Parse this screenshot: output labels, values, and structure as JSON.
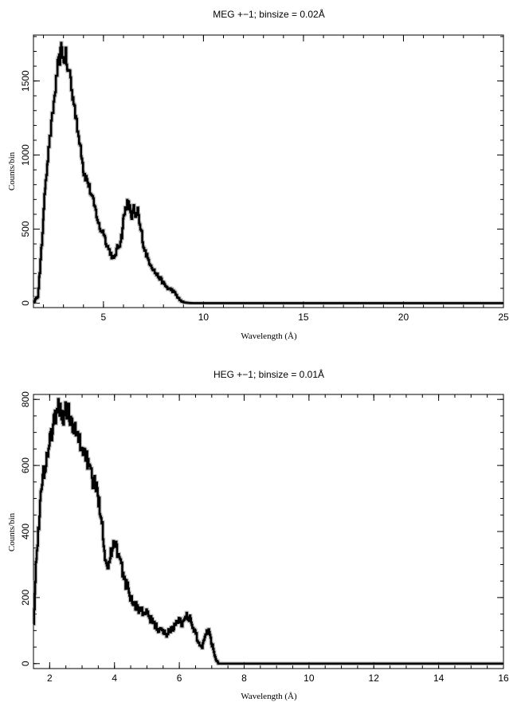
{
  "chart_data": [
    {
      "type": "line",
      "title": "MEG +−1; binsize = 0.02Å",
      "xlabel": "Wavelength (Å)",
      "ylabel": "Counts/bin",
      "xlim": [
        1.5,
        25
      ],
      "ylim": [
        -30,
        1810
      ],
      "xticks": [
        5,
        10,
        15,
        20,
        25
      ],
      "xtick_labels": [
        "5",
        "10",
        "15",
        "20",
        "25"
      ],
      "yticks": [
        0,
        500,
        1000,
        1500
      ],
      "ytick_labels": [
        "0",
        "500",
        "1000",
        "1500"
      ],
      "grid": false,
      "series": [
        {
          "x": [
            1.5,
            1.7,
            1.8,
            1.9,
            2.0,
            2.1,
            2.2,
            2.3,
            2.5,
            2.7,
            2.8,
            2.9,
            3.0,
            3.1,
            3.2,
            3.3,
            3.4,
            3.5,
            3.6,
            3.7,
            3.8,
            3.9,
            4.0,
            4.2,
            4.4,
            4.6,
            4.8,
            5.0,
            5.1,
            5.2,
            5.4,
            5.5,
            5.6,
            5.7,
            5.8,
            5.9,
            6.0,
            6.1,
            6.2,
            6.3,
            6.4,
            6.5,
            6.6,
            6.7,
            6.8,
            6.9,
            7.0,
            7.2,
            7.4,
            7.6,
            7.8,
            8.0,
            8.2,
            8.4,
            8.6,
            8.8,
            9.0,
            9.2,
            9.4,
            10,
            15,
            20,
            25
          ],
          "y": [
            5,
            50,
            200,
            400,
            620,
            840,
            980,
            1100,
            1350,
            1600,
            1650,
            1740,
            1620,
            1680,
            1550,
            1580,
            1420,
            1380,
            1250,
            1150,
            1100,
            1000,
            880,
            820,
            720,
            620,
            500,
            480,
            420,
            380,
            320,
            290,
            340,
            380,
            400,
            460,
            580,
            650,
            680,
            640,
            580,
            640,
            560,
            630,
            520,
            470,
            380,
            300,
            250,
            200,
            170,
            130,
            100,
            90,
            60,
            20,
            5,
            2,
            0,
            0,
            0,
            0,
            0
          ]
        }
      ]
    },
    {
      "type": "line",
      "title": "HEG +−1; binsize = 0.01Å",
      "xlabel": "Wavelength (Å)",
      "ylabel": "Counts/bin",
      "xlim": [
        1.5,
        16
      ],
      "ylim": [
        -15,
        815
      ],
      "xticks": [
        2,
        4,
        6,
        8,
        10,
        12,
        14,
        16
      ],
      "xtick_labels": [
        "2",
        "4",
        "6",
        "8",
        "10",
        "12",
        "14",
        "16"
      ],
      "yticks": [
        0,
        200,
        400,
        600,
        800
      ],
      "ytick_labels": [
        "0",
        "200",
        "400",
        "600",
        "800"
      ],
      "grid": false,
      "series": [
        {
          "x": [
            1.5,
            1.55,
            1.6,
            1.7,
            1.8,
            1.9,
            2.0,
            2.1,
            2.2,
            2.3,
            2.4,
            2.5,
            2.6,
            2.7,
            2.8,
            2.9,
            3.0,
            3.1,
            3.2,
            3.3,
            3.4,
            3.5,
            3.6,
            3.7,
            3.8,
            3.9,
            4.0,
            4.1,
            4.2,
            4.3,
            4.4,
            4.5,
            4.6,
            4.8,
            5.0,
            5.2,
            5.4,
            5.6,
            5.8,
            6.0,
            6.1,
            6.2,
            6.3,
            6.4,
            6.5,
            6.6,
            6.7,
            6.8,
            6.9,
            7.0,
            7.1,
            7.2,
            8,
            10,
            12,
            14,
            16
          ],
          "y": [
            130,
            250,
            350,
            480,
            580,
            620,
            680,
            720,
            760,
            780,
            740,
            770,
            760,
            710,
            700,
            680,
            650,
            640,
            590,
            560,
            540,
            500,
            440,
            330,
            290,
            340,
            380,
            330,
            300,
            250,
            230,
            200,
            180,
            160,
            150,
            120,
            100,
            90,
            110,
            130,
            120,
            150,
            140,
            110,
            90,
            60,
            50,
            95,
            100,
            60,
            20,
            0,
            0,
            0,
            0,
            0,
            0
          ]
        }
      ]
    }
  ]
}
